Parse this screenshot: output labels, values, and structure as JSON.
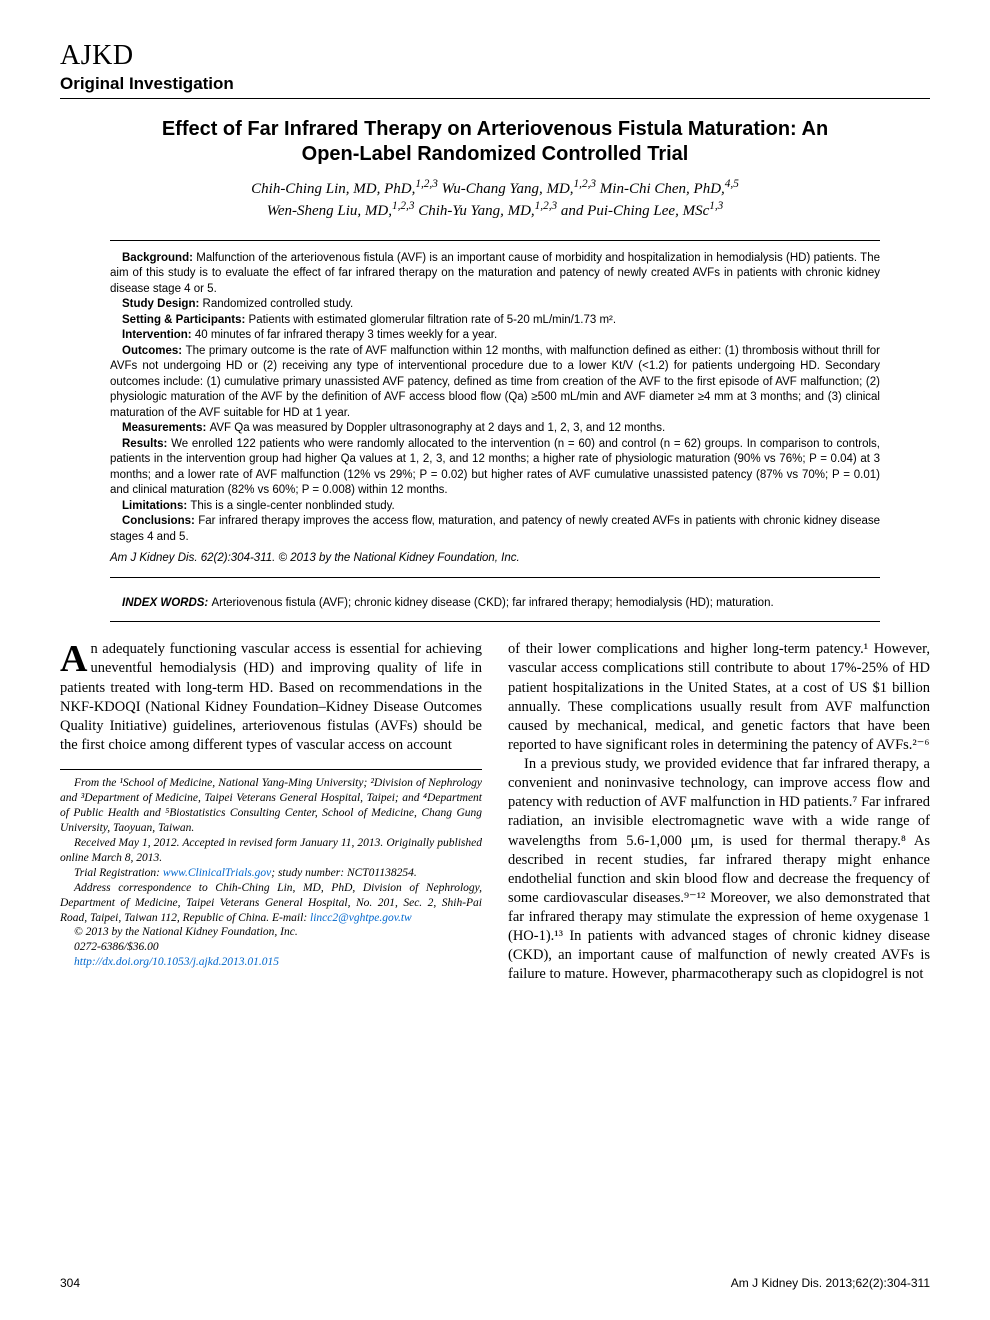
{
  "header": {
    "logo": "AJKD",
    "section": "Original Investigation"
  },
  "title": "Effect of Far Infrared Therapy on Arteriovenous Fistula Maturation: An Open-Label Randomized Controlled Trial",
  "authors_line1": "Chih-Ching Lin, MD, PhD,",
  "authors_aff1": "1,2,3",
  "authors_line2": " Wu-Chang Yang, MD,",
  "authors_aff2": "1,2,3",
  "authors_line3": " Min-Chi Chen, PhD,",
  "authors_aff3": "4,5",
  "authors_line4": "Wen-Sheng Liu, MD,",
  "authors_aff4": "1,2,3",
  "authors_line5": " Chih-Yu Yang, MD,",
  "authors_aff5": "1,2,3",
  "authors_line6": " and Pui-Ching Lee, MSc",
  "authors_aff6": "1,3",
  "abstract": {
    "background": "Malfunction of the arteriovenous fistula (AVF) is an important cause of morbidity and hospitalization in hemodialysis (HD) patients. The aim of this study is to evaluate the effect of far infrared therapy on the maturation and patency of newly created AVFs in patients with chronic kidney disease stage 4 or 5.",
    "study_design": "Randomized controlled study.",
    "setting": "Patients with estimated glomerular filtration rate of 5-20 mL/min/1.73 m².",
    "intervention": "40 minutes of far infrared therapy 3 times weekly for a year.",
    "outcomes": "The primary outcome is the rate of AVF malfunction within 12 months, with malfunction defined as either: (1) thrombosis without thrill for AVFs not undergoing HD or (2) receiving any type of interventional procedure due to a lower Kt/V (<1.2) for patients undergoing HD. Secondary outcomes include: (1) cumulative primary unassisted AVF patency, defined as time from creation of the AVF to the first episode of AVF malfunction; (2) physiologic maturation of the AVF by the definition of AVF access blood flow (Qa) ≥500 mL/min and AVF diameter ≥4 mm at 3 months; and (3) clinical maturation of the AVF suitable for HD at 1 year.",
    "measurements": "AVF Qa was measured by Doppler ultrasonography at 2 days and 1, 2, 3, and 12 months.",
    "results": "We enrolled 122 patients who were randomly allocated to the intervention (n = 60) and control (n = 62) groups. In comparison to controls, patients in the intervention group had higher Qa values at 1, 2, 3, and 12 months; a higher rate of physiologic maturation (90% vs 76%; P = 0.04) at 3 months; and a lower rate of AVF malfunction (12% vs 29%; P = 0.02) but higher rates of AVF cumulative unassisted patency (87% vs 70%; P = 0.01) and clinical maturation (82% vs 60%; P = 0.008) within 12 months.",
    "limitations": "This is a single-center nonblinded study.",
    "conclusions": "Far infrared therapy improves the access flow, maturation, and patency of newly created AVFs in patients with chronic kidney disease stages 4 and 5.",
    "citation": "Am J Kidney Dis. 62(2):304-311. © 2013 by the National Kidney Foundation, Inc."
  },
  "index_words": "Arteriovenous fistula (AVF); chronic kidney disease (CKD); far infrared therapy; hemodialysis (HD); maturation.",
  "body": {
    "left_p1": "n adequately functioning vascular access is essential for achieving uneventful hemodialysis (HD) and improving quality of life in patients treated with long-term HD. Based on recommendations in the NKF-KDOQI (National Kidney Foundation–Kidney Disease Outcomes Quality Initiative) guidelines, arteriovenous fistulas (AVFs) should be the first choice among different types of vascular access on account",
    "right_p1": "of their lower complications and higher long-term patency.¹ However, vascular access complications still contribute to about 17%-25% of HD patient hospitalizations in the United States, at a cost of US $1 billion annually. These complications usually result from AVF malfunction caused by mechanical, medical, and genetic factors that have been reported to have significant roles in determining the patency of AVFs.²⁻⁶",
    "right_p2": "In a previous study, we provided evidence that far infrared therapy, a convenient and noninvasive technology, can improve access flow and patency with reduction of AVF malfunction in HD patients.⁷ Far infrared radiation, an invisible electromagnetic wave with a wide range of wavelengths from 5.6-1,000 μm, is used for thermal therapy.⁸ As described in recent studies, far infrared therapy might enhance endothelial function and skin blood flow and decrease the frequency of some cardiovascular diseases.⁹⁻¹² Moreover, we also demonstrated that far infrared therapy may stimulate the expression of heme oxygenase 1 (HO-1).¹³ In patients with advanced stages of chronic kidney disease (CKD), an important cause of malfunction of newly created AVFs is failure to mature. However, pharmacotherapy such as clopidogrel is not"
  },
  "footnotes": {
    "affil": "From the ¹School of Medicine, National Yang-Ming University; ²Division of Nephrology and ³Department of Medicine, Taipei Veterans General Hospital, Taipei; and ⁴Department of Public Health and ⁵Biostatistics Consulting Center, School of Medicine, Chang Gung University, Taoyuan, Taiwan.",
    "received": "Received May 1, 2012. Accepted in revised form January 11, 2013. Originally published online March 8, 2013.",
    "trial_label": "Trial Registration: ",
    "trial_link": "www.ClinicalTrials.gov",
    "trial_rest": "; study number: NCT01138254.",
    "correspondence": "Address correspondence to Chih-Ching Lin, MD, PhD, Division of Nephrology, Department of Medicine, Taipei Veterans General Hospital, No. 201, Sec. 2, Shih-Pai Road, Taipei, Taiwan 112, Republic of China. E-mail: ",
    "email": "lincc2@vghtpe.gov.tw",
    "copyright": "© 2013 by the National Kidney Foundation, Inc.",
    "issn": "0272-6386/$36.00",
    "doi": "http://dx.doi.org/10.1053/j.ajkd.2013.01.015"
  },
  "footer": {
    "page": "304",
    "journal": "Am J Kidney Dis. 2013;62(2):304-311"
  },
  "labels": {
    "background": "Background: ",
    "study_design": "Study Design: ",
    "setting": "Setting & Participants: ",
    "intervention": "Intervention: ",
    "outcomes": "Outcomes: ",
    "measurements": "Measurements: ",
    "results": "Results: ",
    "limitations": "Limitations: ",
    "conclusions": "Conclusions: ",
    "index": "INDEX WORDS: ",
    "dropcap": "A"
  }
}
